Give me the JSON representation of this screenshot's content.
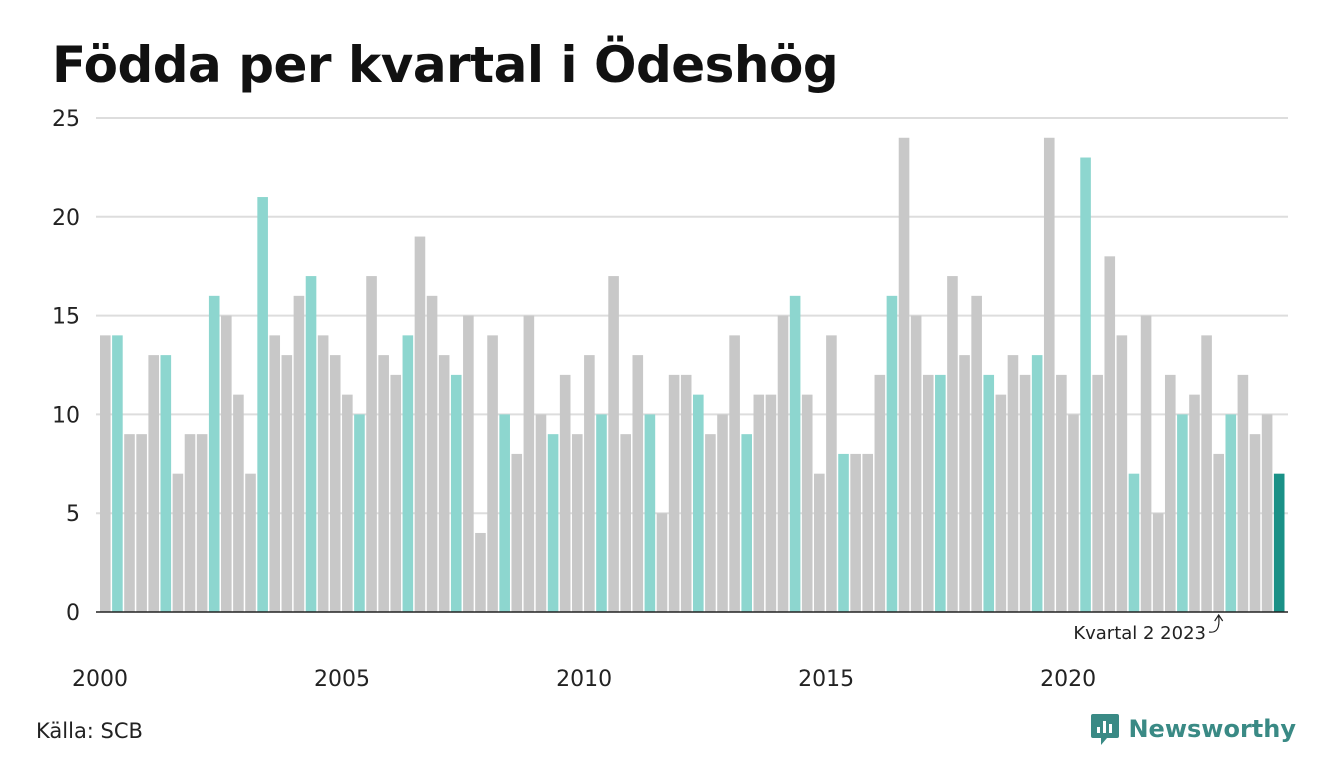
{
  "title": "Födda per kvartal i Ödeshög",
  "source": "Källa: SCB",
  "brand": "Newsworthy",
  "colors": {
    "grey": "#c8c8c8",
    "teal": "#8dd6cf",
    "latest": "#1a9187",
    "grid": "#dddddd",
    "axis": "#222222",
    "brand": "#3a8a85"
  },
  "chart_data": {
    "type": "bar",
    "title": "Födda per kvartal i Ödeshög",
    "ylim": [
      0,
      25
    ],
    "yticks": [
      0,
      5,
      10,
      15,
      20,
      25
    ],
    "xticks": [
      "2000",
      "2005",
      "2010",
      "2015",
      "2020"
    ],
    "grid": true,
    "highlight_quarter": 2,
    "annotation": "Kvartal 2 2023",
    "values": [
      14,
      14,
      9,
      9,
      13,
      13,
      7,
      9,
      9,
      16,
      15,
      11,
      7,
      21,
      14,
      13,
      16,
      17,
      14,
      13,
      11,
      10,
      17,
      13,
      12,
      14,
      19,
      16,
      13,
      12,
      15,
      4,
      14,
      10,
      8,
      15,
      10,
      9,
      12,
      9,
      13,
      10,
      17,
      9,
      13,
      10,
      5,
      12,
      12,
      11,
      9,
      10,
      14,
      9,
      11,
      11,
      15,
      16,
      11,
      7,
      14,
      8,
      8,
      8,
      12,
      16,
      24,
      15,
      12,
      12,
      17,
      13,
      16,
      12,
      11,
      13,
      12,
      13,
      24,
      12,
      10,
      23,
      12,
      18,
      14,
      7,
      15,
      5,
      12,
      10,
      11,
      14,
      8,
      10,
      12,
      9,
      10,
      7
    ]
  }
}
